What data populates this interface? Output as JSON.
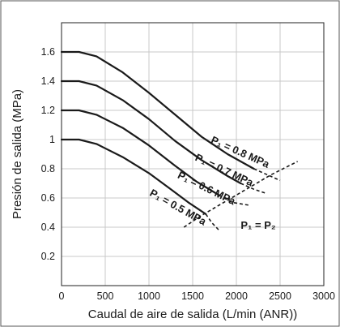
{
  "chart_data": {
    "type": "line",
    "title": "",
    "xlabel": "Caudal de aire de salida (L/min (ANR))",
    "ylabel": "Presión de salida (MPa)",
    "xlim": [
      0,
      3000
    ],
    "ylim": [
      0,
      1.8
    ],
    "x_ticks": [
      0,
      500,
      1000,
      1500,
      2000,
      2500,
      3000
    ],
    "x_tick_labels": [
      "0",
      "500",
      "1000",
      "1500",
      "2000",
      "2500",
      "3000"
    ],
    "y_ticks": [
      0.2,
      0.4,
      0.6,
      0.8,
      1.0,
      1.2,
      1.4,
      1.6
    ],
    "y_tick_labels": [
      "0.2",
      "0.4",
      "0.6",
      "0.8",
      "1",
      "1.2",
      "1.4",
      "1.6"
    ],
    "grid": true,
    "legend": "none",
    "series": [
      {
        "name": "P₁ = 0.8 MPa",
        "solid": [
          [
            0,
            1.6
          ],
          [
            200,
            1.6
          ],
          [
            400,
            1.57
          ],
          [
            700,
            1.46
          ],
          [
            1000,
            1.32
          ],
          [
            1300,
            1.17
          ],
          [
            1600,
            1.02
          ],
          [
            1900,
            0.9
          ],
          [
            2200,
            0.8
          ]
        ],
        "dashed": [
          [
            2200,
            0.8
          ],
          [
            2350,
            0.76
          ],
          [
            2500,
            0.72
          ]
        ]
      },
      {
        "name": "P₁ = 0.7 MPa",
        "solid": [
          [
            0,
            1.4
          ],
          [
            200,
            1.4
          ],
          [
            400,
            1.37
          ],
          [
            700,
            1.27
          ],
          [
            1000,
            1.14
          ],
          [
            1300,
            0.99
          ],
          [
            1600,
            0.86
          ],
          [
            1900,
            0.75
          ],
          [
            2050,
            0.7
          ]
        ],
        "dashed": [
          [
            2050,
            0.7
          ],
          [
            2200,
            0.66
          ],
          [
            2350,
            0.63
          ]
        ]
      },
      {
        "name": "P₁ = 0.6 MPa",
        "solid": [
          [
            0,
            1.2
          ],
          [
            200,
            1.2
          ],
          [
            400,
            1.17
          ],
          [
            700,
            1.08
          ],
          [
            1000,
            0.96
          ],
          [
            1300,
            0.82
          ],
          [
            1550,
            0.71
          ],
          [
            1800,
            0.62
          ]
        ],
        "dashed": [
          [
            1800,
            0.62
          ],
          [
            1950,
            0.57
          ],
          [
            2150,
            0.55
          ]
        ]
      },
      {
        "name": "P₁ = 0.5 MPa",
        "solid": [
          [
            0,
            1.0
          ],
          [
            200,
            1.0
          ],
          [
            400,
            0.97
          ],
          [
            700,
            0.88
          ],
          [
            1000,
            0.77
          ],
          [
            1250,
            0.66
          ],
          [
            1450,
            0.57
          ],
          [
            1650,
            0.49
          ]
        ],
        "dashed": [
          [
            1650,
            0.49
          ],
          [
            1720,
            0.43
          ],
          [
            1800,
            0.38
          ]
        ]
      },
      {
        "name": "P₁ = P₂",
        "dashed": [
          [
            1400,
            0.4
          ],
          [
            1600,
            0.48
          ],
          [
            1800,
            0.55
          ],
          [
            2000,
            0.62
          ],
          [
            2200,
            0.69
          ],
          [
            2400,
            0.76
          ],
          [
            2600,
            0.82
          ],
          [
            2700,
            0.85
          ]
        ]
      }
    ],
    "annotations": [
      {
        "text": "P₁ = 0.8 MPa",
        "x": 1700,
        "y": 0.98,
        "angle": 24
      },
      {
        "text": "P₁ = 0.7 MPa",
        "x": 1520,
        "y": 0.86,
        "angle": 25
      },
      {
        "text": "P₁ = 0.6 MPa",
        "x": 1320,
        "y": 0.74,
        "angle": 26
      },
      {
        "text": "P₁ = 0.5 MPa",
        "x": 1000,
        "y": 0.62,
        "angle": 29
      },
      {
        "text": "P₁ = P₂",
        "x": 2050,
        "y": 0.39,
        "angle": 0
      }
    ]
  }
}
